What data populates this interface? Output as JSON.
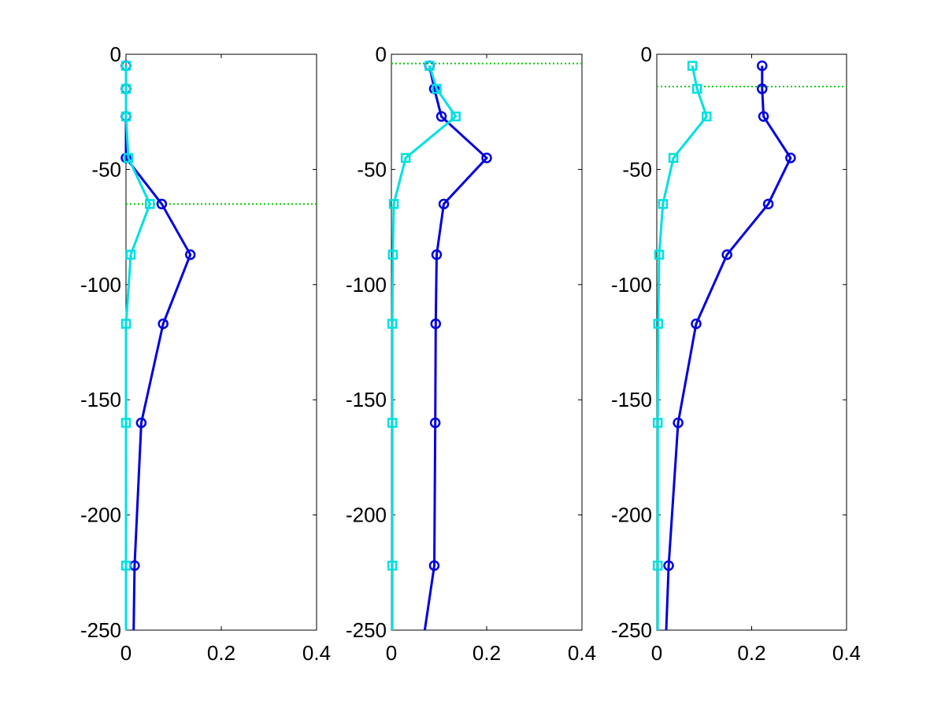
{
  "chart_data": [
    {
      "type": "line",
      "title": "",
      "xlabel": "",
      "ylabel": "",
      "xlim": [
        0,
        0.4
      ],
      "ylim": [
        -250,
        0
      ],
      "xticks": [
        "0",
        "0.2",
        "0.4"
      ],
      "yticks": [
        "0",
        "-50",
        "-100",
        "-150",
        "-200",
        "-250"
      ],
      "grid": false,
      "reference_line": {
        "y": -65,
        "color": "#00cc00",
        "style": "dotted"
      },
      "series": [
        {
          "color": "#0000e0",
          "marker": "circle",
          "points": [
            {
              "x": 0.0,
              "y": -5
            },
            {
              "x": 0.0,
              "y": -15
            },
            {
              "x": 0.0,
              "y": -27
            },
            {
              "x": 0.0,
              "y": -45
            },
            {
              "x": 0.075,
              "y": -65
            },
            {
              "x": 0.135,
              "y": -87
            },
            {
              "x": 0.078,
              "y": -117
            },
            {
              "x": 0.032,
              "y": -160
            },
            {
              "x": 0.018,
              "y": -222
            },
            {
              "x": 0.016,
              "y": -250
            }
          ]
        },
        {
          "color": "#00e0e0",
          "marker": "square",
          "points": [
            {
              "x": 0.0,
              "y": -5
            },
            {
              "x": 0.0,
              "y": -15
            },
            {
              "x": 0.0,
              "y": -27
            },
            {
              "x": 0.005,
              "y": -45
            },
            {
              "x": 0.05,
              "y": -65
            },
            {
              "x": 0.01,
              "y": -87
            },
            {
              "x": 0.0,
              "y": -117
            },
            {
              "x": 0.0,
              "y": -160
            },
            {
              "x": 0.0,
              "y": -222
            },
            {
              "x": 0.0,
              "y": -250
            }
          ]
        }
      ]
    },
    {
      "type": "line",
      "title": "",
      "xlabel": "",
      "ylabel": "",
      "xlim": [
        0,
        0.4
      ],
      "ylim": [
        -250,
        0
      ],
      "xticks": [
        "0",
        "0.2",
        "0.4"
      ],
      "yticks": [
        "0",
        "-50",
        "-100",
        "-150",
        "-200",
        "-250"
      ],
      "grid": false,
      "reference_line": {
        "y": -4,
        "color": "#00cc00",
        "style": "dotted"
      },
      "series": [
        {
          "color": "#0000e0",
          "marker": "circle",
          "points": [
            {
              "x": 0.08,
              "y": -5
            },
            {
              "x": 0.09,
              "y": -15
            },
            {
              "x": 0.105,
              "y": -27
            },
            {
              "x": 0.2,
              "y": -45
            },
            {
              "x": 0.11,
              "y": -65
            },
            {
              "x": 0.095,
              "y": -87
            },
            {
              "x": 0.093,
              "y": -117
            },
            {
              "x": 0.092,
              "y": -160
            },
            {
              "x": 0.09,
              "y": -222
            },
            {
              "x": 0.07,
              "y": -250
            }
          ]
        },
        {
          "color": "#00e0e0",
          "marker": "square",
          "points": [
            {
              "x": 0.08,
              "y": -5
            },
            {
              "x": 0.095,
              "y": -15
            },
            {
              "x": 0.135,
              "y": -27
            },
            {
              "x": 0.03,
              "y": -45
            },
            {
              "x": 0.005,
              "y": -65
            },
            {
              "x": 0.003,
              "y": -87
            },
            {
              "x": 0.002,
              "y": -117
            },
            {
              "x": 0.002,
              "y": -160
            },
            {
              "x": 0.002,
              "y": -222
            },
            {
              "x": 0.002,
              "y": -250
            }
          ]
        }
      ]
    },
    {
      "type": "line",
      "title": "",
      "xlabel": "",
      "ylabel": "",
      "xlim": [
        0,
        0.4
      ],
      "ylim": [
        -250,
        0
      ],
      "xticks": [
        "0",
        "0.2",
        "0.4"
      ],
      "yticks": [
        "0",
        "-50",
        "-100",
        "-150",
        "-200",
        "-250"
      ],
      "grid": false,
      "reference_line": {
        "y": -14,
        "color": "#00cc00",
        "style": "dotted"
      },
      "series": [
        {
          "color": "#0000e0",
          "marker": "circle",
          "points": [
            {
              "x": 0.222,
              "y": -5
            },
            {
              "x": 0.222,
              "y": -15
            },
            {
              "x": 0.225,
              "y": -27
            },
            {
              "x": 0.282,
              "y": -45
            },
            {
              "x": 0.235,
              "y": -65
            },
            {
              "x": 0.148,
              "y": -87
            },
            {
              "x": 0.083,
              "y": -117
            },
            {
              "x": 0.045,
              "y": -160
            },
            {
              "x": 0.025,
              "y": -222
            },
            {
              "x": 0.02,
              "y": -250
            }
          ]
        },
        {
          "color": "#00e0e0",
          "marker": "square",
          "points": [
            {
              "x": 0.075,
              "y": -5
            },
            {
              "x": 0.085,
              "y": -15
            },
            {
              "x": 0.105,
              "y": -27
            },
            {
              "x": 0.035,
              "y": -45
            },
            {
              "x": 0.013,
              "y": -65
            },
            {
              "x": 0.005,
              "y": -87
            },
            {
              "x": 0.003,
              "y": -117
            },
            {
              "x": 0.002,
              "y": -160
            },
            {
              "x": 0.002,
              "y": -222
            },
            {
              "x": 0.002,
              "y": -250
            }
          ]
        }
      ]
    }
  ]
}
